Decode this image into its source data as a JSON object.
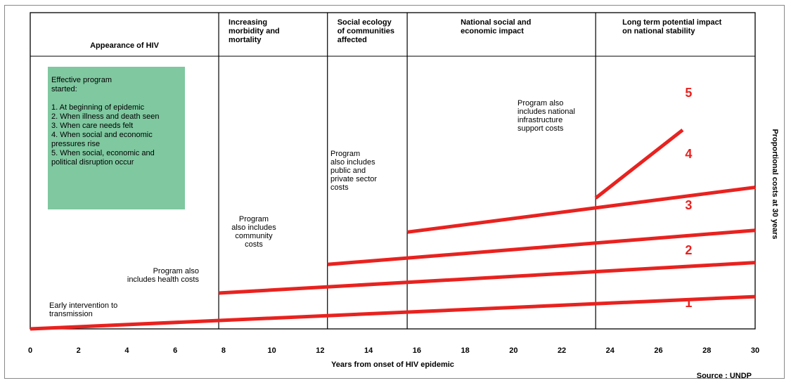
{
  "chart_data": {
    "type": "line",
    "xlabel": "Years from onset of HIV epidemic",
    "ylabel": "Proportional costs at 30 years",
    "xlim": [
      0,
      30
    ],
    "x_ticks": [
      "0",
      "2",
      "4",
      "6",
      "8",
      "10",
      "12",
      "14",
      "16",
      "18",
      "20",
      "22",
      "24",
      "26",
      "28",
      "30"
    ],
    "source": "Source : UNDP",
    "phases": [
      {
        "label": "Appearance of HIV",
        "x_start": 0,
        "x_end": 7.8
      },
      {
        "label": "Increasing\nmorbidity and\nmortality",
        "x_start": 7.8,
        "x_end": 12.3
      },
      {
        "label": "Social ecology\nof communities\naffected",
        "x_start": 12.3,
        "x_end": 15.6
      },
      {
        "label": "National social and\neconomic impact",
        "x_start": 15.6,
        "x_end": 23.4
      },
      {
        "label": "Long term potential impact\non national stability",
        "x_start": 23.4,
        "x_end": 30
      }
    ],
    "series": [
      {
        "name": "1",
        "points": [
          [
            0,
            0
          ],
          [
            30,
            18
          ]
        ]
      },
      {
        "name": "2",
        "points": [
          [
            7.8,
            20
          ],
          [
            30,
            37
          ]
        ]
      },
      {
        "name": "3",
        "points": [
          [
            12.3,
            36
          ],
          [
            30,
            55
          ]
        ]
      },
      {
        "name": "4",
        "points": [
          [
            15.6,
            54
          ],
          [
            30,
            79
          ]
        ]
      },
      {
        "name": "5",
        "points": [
          [
            23.4,
            73
          ],
          [
            27.0,
            111
          ]
        ]
      }
    ],
    "annotations": [
      "Early intervention to\ntransmission",
      "Program also\nincludes health costs",
      "Program\nalso includes\ncommunity\ncosts",
      "Program\nalso includes\npublic and\nprivate sector\ncosts",
      "Program also\nincludes national\ninfrastructure\nsupport costs"
    ],
    "legend_box": {
      "title": "Effective program\nstarted:",
      "items": [
        "1. At beginning of epidemic",
        "2. When illness and death seen",
        "3. When care needs felt",
        "4. When social and economic\npressures rise",
        "5. When social, economic and\npolitical disruption occur"
      ]
    },
    "colors": {
      "line": "#e8221f",
      "legend_bg": "#7fc8a0",
      "text": "#000000"
    }
  }
}
